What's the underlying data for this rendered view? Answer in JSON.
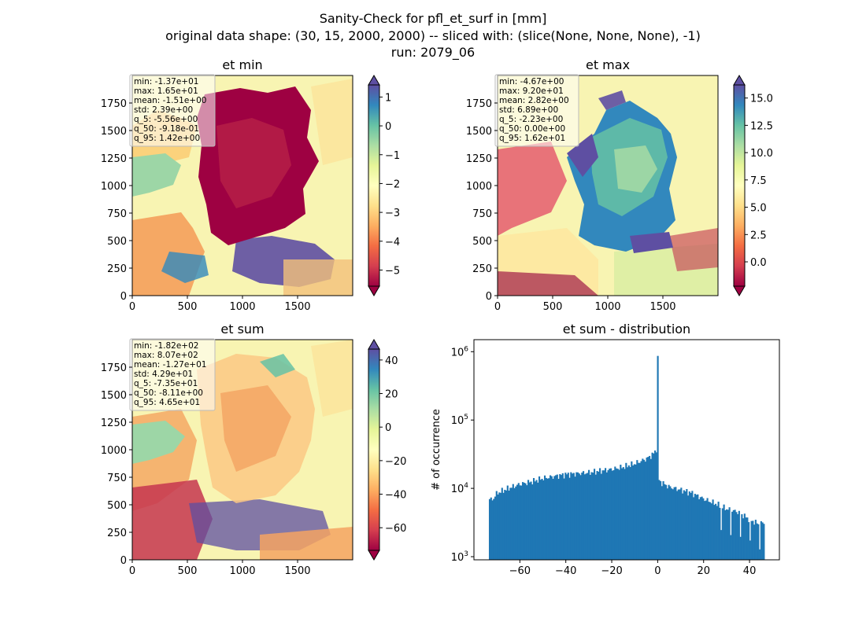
{
  "figure": {
    "title_lines": [
      "Sanity-Check for pfl_et_surf in [mm]",
      "original data shape: (30, 15, 2000, 2000) -- sliced with: (slice(None, None, None), -1)",
      "run: 2079_06"
    ]
  },
  "colors": {
    "bar": "#1f77b4",
    "colormap": "Spectral",
    "colormap_stops": [
      "#9e0142",
      "#d53e4f",
      "#f46d43",
      "#fdae61",
      "#fee08b",
      "#ffffbf",
      "#e6f598",
      "#abdda4",
      "#66c2a5",
      "#3288bd",
      "#5e4fa2"
    ]
  },
  "chart_data": [
    {
      "type": "heatmap",
      "title": "et min",
      "xlim": [
        0,
        2000
      ],
      "ylim": [
        0,
        2000
      ],
      "xticks": [
        0,
        500,
        1000,
        1500
      ],
      "yticks": [
        0,
        250,
        500,
        750,
        1000,
        1250,
        1500,
        1750
      ],
      "colorbar": {
        "vmin": -5.56,
        "vmax": 1.42,
        "ticks": [
          1,
          0,
          -1,
          -2,
          -3,
          -4,
          -5
        ],
        "extend": "both"
      },
      "stats": [
        "min: -1.37e+01",
        "max: 1.65e+01",
        "mean: -1.51e+00",
        "std: 2.39e+00",
        "q_5: -5.56e+00",
        "q_50: -9.18e-01",
        "q_95: 1.42e+00"
      ]
    },
    {
      "type": "heatmap",
      "title": "et max",
      "xlim": [
        0,
        2000
      ],
      "ylim": [
        0,
        2000
      ],
      "xticks": [
        0,
        500,
        1000,
        1500
      ],
      "yticks": [
        0,
        250,
        500,
        750,
        1000,
        1250,
        1500,
        1750
      ],
      "colorbar": {
        "vmin": -2.23,
        "vmax": 16.2,
        "ticks": [
          15.0,
          12.5,
          10.0,
          7.5,
          5.0,
          2.5,
          0.0
        ],
        "tick_labels": [
          "15.0",
          "12.5",
          "10.0",
          "7.5",
          "5.0",
          "2.5",
          "0.0"
        ],
        "extend": "both"
      },
      "stats": [
        "min: -4.67e+00",
        "max: 9.20e+01",
        "mean: 2.82e+00",
        "std: 6.89e+00",
        "q_5: -2.23e+00",
        "q_50: 0.00e+00",
        "q_95: 1.62e+01"
      ]
    },
    {
      "type": "heatmap",
      "title": "et sum",
      "xlim": [
        0,
        2000
      ],
      "ylim": [
        0,
        2000
      ],
      "xticks": [
        0,
        500,
        1000,
        1500
      ],
      "yticks": [
        0,
        250,
        500,
        750,
        1000,
        1250,
        1500,
        1750
      ],
      "colorbar": {
        "vmin": -73.5,
        "vmax": 46.5,
        "ticks": [
          40,
          20,
          0,
          -20,
          -40,
          -60
        ],
        "extend": "both"
      },
      "stats": [
        "min: -1.82e+02",
        "max: 8.07e+02",
        "mean: -1.27e+01",
        "std: 4.29e+01",
        "q_5: -7.35e+01",
        "q_50: -8.11e+00",
        "q_95: 4.65e+01"
      ]
    },
    {
      "type": "bar",
      "title": "et sum - distribution",
      "ylabel": "# of occurrence",
      "yscale": "log",
      "xlim": [
        -80,
        53
      ],
      "ylim": [
        900,
        1500000
      ],
      "xticks": [
        -60,
        -40,
        -20,
        0,
        20,
        40
      ],
      "xtick_labels": [
        "−60",
        "−40",
        "−20",
        "0",
        "20",
        "40"
      ],
      "yticks": [
        1000,
        10000,
        100000,
        1000000
      ],
      "ytick_labels": [
        {
          "base": "10",
          "exp": "3"
        },
        {
          "base": "10",
          "exp": "4"
        },
        {
          "base": "10",
          "exp": "5"
        },
        {
          "base": "10",
          "exp": "6"
        }
      ],
      "bin_range": [
        -73.5,
        46.5
      ],
      "bin_count": 200,
      "curve_x": [
        -73.5,
        -72,
        -70,
        -65,
        -60,
        -55,
        -50,
        -45,
        -40,
        -35,
        -30,
        -25,
        -20,
        -15,
        -10,
        -5,
        -3,
        -1.5,
        -0.6,
        -0.3,
        0,
        0.3,
        1,
        5,
        10,
        15,
        20,
        25,
        30,
        35,
        40,
        44,
        46.5
      ],
      "curve_y": [
        7000,
        6800,
        8500,
        10000,
        11500,
        12500,
        14000,
        15000,
        16000,
        16500,
        17000,
        18000,
        19000,
        20500,
        23000,
        27000,
        30000,
        33000,
        38000,
        45000,
        800000,
        14000,
        12500,
        10500,
        9500,
        8500,
        7000,
        6000,
        5000,
        4500,
        3500,
        3000,
        3200
      ]
    }
  ]
}
